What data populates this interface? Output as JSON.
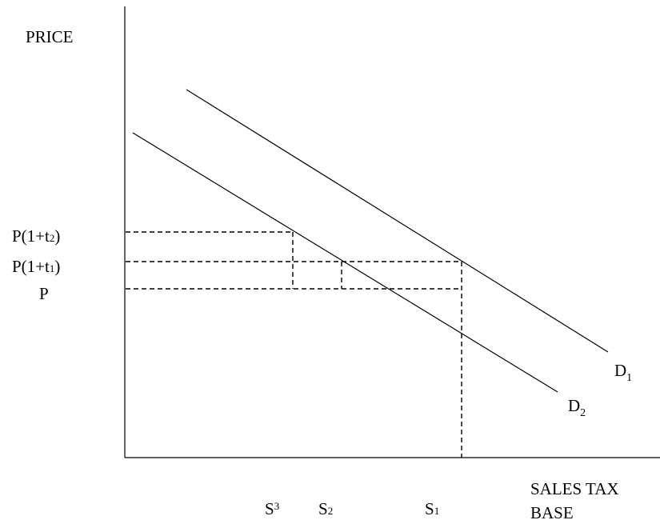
{
  "axes": {
    "y_label": "PRICE",
    "x_label_line1": "SALES TAX",
    "x_label_line2": "BASE"
  },
  "price_levels": {
    "p_t2": {
      "base": "P(1+t",
      "sub": "2",
      "close": ")"
    },
    "p_t1": {
      "base": "P(1+t",
      "sub": "1",
      "close": ")"
    },
    "p": {
      "base": "P"
    }
  },
  "quantities": {
    "s3": {
      "base": "S",
      "sub": "3"
    },
    "s2": {
      "base": "S",
      "sub": "2"
    },
    "s1": {
      "base": "S",
      "sub": "1"
    }
  },
  "curves": {
    "d1": {
      "base": "D",
      "sub": "1"
    },
    "d2": {
      "base": "D",
      "sub": "2"
    }
  }
}
